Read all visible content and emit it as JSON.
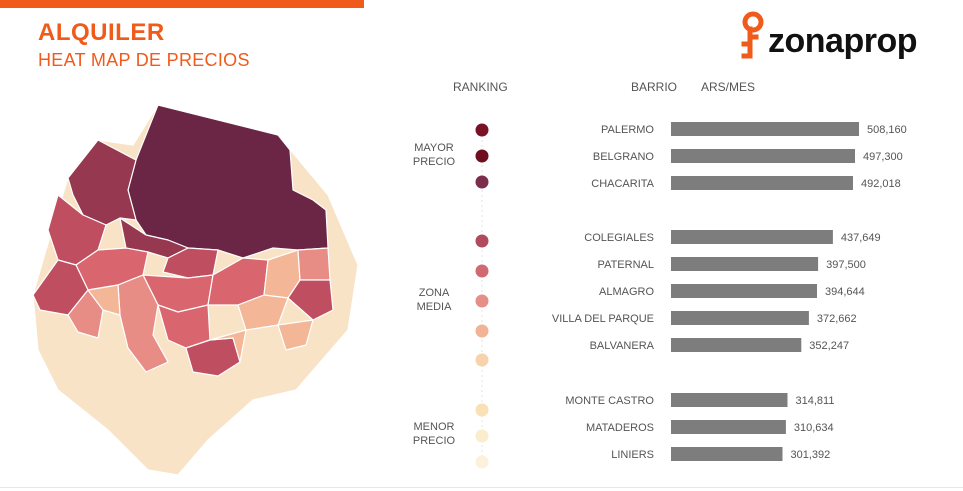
{
  "header": {
    "title": "ALQUILER",
    "subtitle": "HEAT MAP DE PRECIOS",
    "accent_color": "#f05a1a",
    "logo_text": "zonaprop",
    "logo_icon": "location-key-icon"
  },
  "columns": {
    "ranking": "RANKING",
    "barrio": "BARRIO",
    "value": "ARS/MES"
  },
  "groups": [
    {
      "line1": "MAYOR",
      "line2": "PRECIO"
    },
    {
      "line1": "ZONA",
      "line2": "MEDIA"
    },
    {
      "line1": "MENOR",
      "line2": "PRECIO"
    }
  ],
  "ranking_dot_colors": [
    "#7a1226",
    "#6d0f1e",
    "#7b2d4b",
    "#b04a5c",
    "#cf6a73",
    "#e58f88",
    "#f2b394",
    "#f6d3ad",
    "#f9e1b6",
    "#fbeccd",
    "#fcf2db"
  ],
  "map": {
    "colors": [
      "#6b2545",
      "#96384f",
      "#c04e61",
      "#d9666e",
      "#e88c86",
      "#f3b696",
      "#f8e3c6"
    ]
  },
  "chart_data": {
    "type": "bar",
    "orientation": "horizontal",
    "bar_color": "#7d7d7d",
    "categories": [
      "PALERMO",
      "BELGRANO",
      "CHACARITA",
      "COLEGIALES",
      "PATERNAL",
      "ALMAGRO",
      "VILLA DEL PARQUE",
      "BALVANERA",
      "MONTE CASTRO",
      "MATADEROS",
      "LINIERS"
    ],
    "values": [
      508160,
      497300,
      492018,
      437649,
      397500,
      394644,
      372662,
      352247,
      314811,
      310634,
      301392
    ],
    "value_labels": [
      "508,160",
      "497,300",
      "492,018",
      "437,649",
      "397,500",
      "394,644",
      "372,662",
      "352,247",
      "314,811",
      "310,634",
      "301,392"
    ]
  }
}
